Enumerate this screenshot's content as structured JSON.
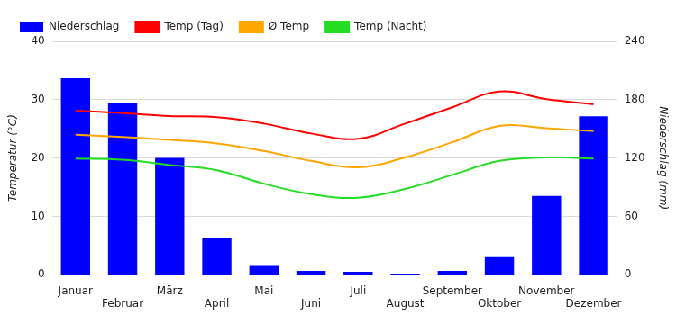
{
  "chart_data": {
    "type": "bar",
    "categories": [
      "Januar",
      "Februar",
      "März",
      "April",
      "Mai",
      "Juni",
      "Juli",
      "August",
      "September",
      "Oktober",
      "November",
      "Dezember"
    ],
    "series": [
      {
        "name": "Niederschlag",
        "type": "bar",
        "color": "#0000ff",
        "axis": "y2",
        "values": [
          202,
          176,
          120,
          38,
          10,
          4,
          3,
          1,
          4,
          19,
          81,
          163
        ]
      },
      {
        "name": "Temp (Tag)",
        "type": "line",
        "color": "#ff0000",
        "values": [
          28.1,
          27.7,
          27.2,
          27.0,
          25.9,
          24.2,
          23.3,
          25.9,
          28.7,
          31.4,
          30.1,
          29.2
        ]
      },
      {
        "name": "Ø Temp",
        "type": "line",
        "color": "#ffa500",
        "values": [
          24.0,
          23.6,
          23.1,
          22.5,
          21.2,
          19.5,
          18.4,
          20.1,
          22.7,
          25.5,
          25.1,
          24.6
        ]
      },
      {
        "name": "Temp (Nacht)",
        "type": "line",
        "color": "#22dd22",
        "values": [
          19.9,
          19.7,
          18.8,
          17.9,
          15.6,
          13.8,
          13.2,
          14.7,
          17.1,
          19.5,
          20.1,
          19.9
        ]
      }
    ],
    "y_label": "Temperatur (°C)",
    "y2_label": "Niederschlag (mm)",
    "ylim": [
      0,
      40
    ],
    "yticks": [
      0,
      10,
      20,
      30,
      40
    ],
    "y2lim": [
      0,
      240
    ],
    "y2ticks": [
      0,
      60,
      120,
      180,
      240
    ],
    "grid": true,
    "legend": "top-left"
  }
}
